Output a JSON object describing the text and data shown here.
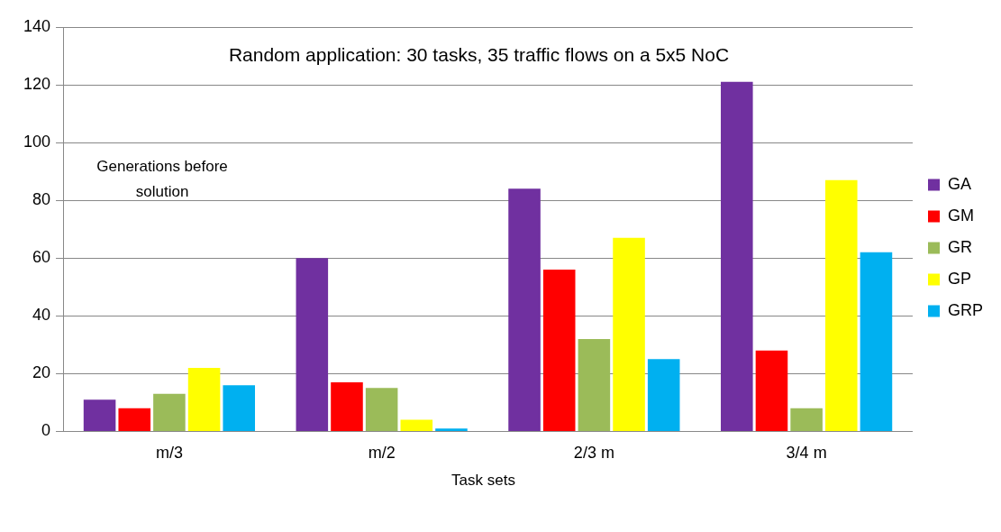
{
  "chart_data": {
    "type": "bar",
    "title": "Random application: 30 tasks, 35 traffic flows on a 5x5 NoC",
    "xlabel": "Task sets",
    "ylabel": "Generations before solution",
    "categories": [
      "m/3",
      "m/2",
      "2/3 m",
      "3/4 m"
    ],
    "series": [
      {
        "name": "GA",
        "color": "#7030a0",
        "values": [
          11,
          60,
          84,
          121
        ]
      },
      {
        "name": "GM",
        "color": "#ff0000",
        "values": [
          8,
          17,
          56,
          28
        ]
      },
      {
        "name": "GR",
        "color": "#9bbb59",
        "values": [
          13,
          15,
          32,
          8
        ]
      },
      {
        "name": "GP",
        "color": "#ffff00",
        "values": [
          22,
          4,
          67,
          87
        ]
      },
      {
        "name": "GRP",
        "color": "#00b0f0",
        "values": [
          16,
          1,
          25,
          62
        ]
      }
    ],
    "ylim": [
      0,
      140
    ],
    "yticks": [
      0,
      20,
      40,
      60,
      80,
      100,
      120,
      140
    ],
    "grid": "y",
    "legend": "right"
  }
}
